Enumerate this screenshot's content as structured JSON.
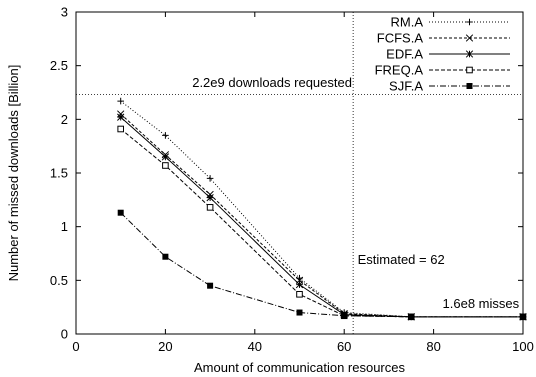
{
  "chart_data": {
    "type": "line",
    "xlabel": "Amount of communication resources",
    "ylabel": "Number of missed downloads [Billion]",
    "xlim": [
      0,
      100
    ],
    "ylim": [
      0,
      3
    ],
    "xticks": [
      0,
      20,
      40,
      60,
      80,
      100
    ],
    "yticks": [
      0,
      0.5,
      1,
      1.5,
      2,
      2.5,
      3
    ],
    "xtick_labels": [
      "0",
      "20",
      "40",
      "60",
      "80",
      "100"
    ],
    "ytick_labels": [
      "0",
      "0.5",
      "1",
      "1.5",
      "2",
      "2.5",
      "3"
    ],
    "grid": false,
    "legend_position": "top-right",
    "series": [
      {
        "name": "RM.A",
        "marker": "plus",
        "dash": "1,2",
        "x": [
          10,
          20,
          30,
          50,
          60,
          75,
          100
        ],
        "y": [
          2.17,
          1.85,
          1.45,
          0.52,
          0.2,
          0.16,
          0.16
        ]
      },
      {
        "name": "FCFS.A",
        "marker": "cross",
        "dash": "3,2",
        "x": [
          10,
          20,
          30,
          50,
          60,
          75,
          100
        ],
        "y": [
          2.05,
          1.67,
          1.3,
          0.5,
          0.19,
          0.16,
          0.16
        ]
      },
      {
        "name": "EDF.A",
        "marker": "star",
        "dash": "",
        "x": [
          10,
          20,
          30,
          50,
          60,
          75,
          100
        ],
        "y": [
          2.02,
          1.65,
          1.27,
          0.46,
          0.18,
          0.16,
          0.16
        ]
      },
      {
        "name": "FREQ.A",
        "marker": "square-open",
        "dash": "4,2",
        "x": [
          10,
          20,
          30,
          50,
          60,
          75,
          100
        ],
        "y": [
          1.91,
          1.57,
          1.18,
          0.37,
          0.17,
          0.16,
          0.16
        ]
      },
      {
        "name": "SJF.A",
        "marker": "square-filled",
        "dash": "6,2,1,2",
        "x": [
          10,
          20,
          30,
          50,
          60,
          75,
          100
        ],
        "y": [
          1.13,
          0.72,
          0.45,
          0.2,
          0.17,
          0.16,
          0.16
        ]
      }
    ],
    "reference_lines": {
      "horizontal_y": 2.23,
      "vertical_x": 62
    },
    "annotations": [
      {
        "text": "2.2e9 downloads requested",
        "x": 26,
        "y": 2.3
      },
      {
        "text": "Estimated = 62",
        "x": 63,
        "y": 0.65
      },
      {
        "text": "1.6e8 misses",
        "x": 82,
        "y": 0.24
      }
    ]
  }
}
